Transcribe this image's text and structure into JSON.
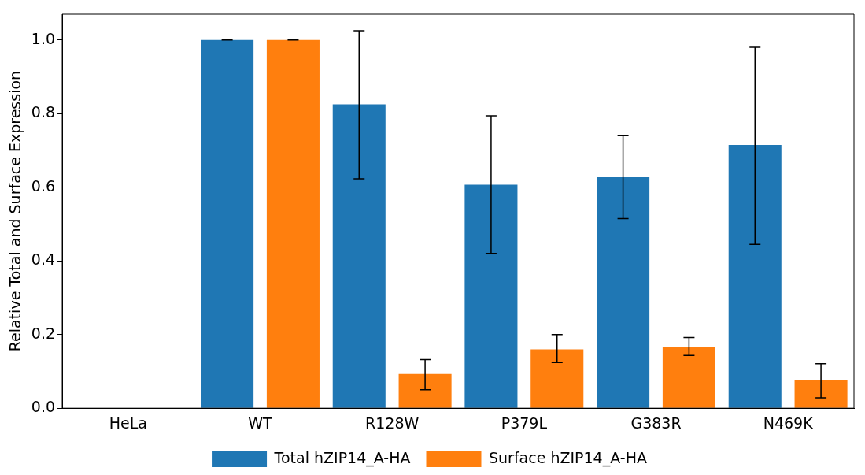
{
  "chart_data": {
    "type": "bar",
    "ylabel": "Relative Total and Surface Expression",
    "categories": [
      "HeLa",
      "WT",
      "R128W",
      "P379L",
      "G383R",
      "N469K"
    ],
    "series": [
      {
        "name": "Total hZIP14_A-HA",
        "color": "#1f77b4",
        "values": [
          0,
          1,
          0.825,
          0.607,
          0.627,
          0.715
        ],
        "errors": [
          null,
          [
            1,
            1
          ],
          [
            0.623,
            1.025
          ],
          [
            0.42,
            0.794
          ],
          [
            0.515,
            0.74
          ],
          [
            0.445,
            0.98
          ]
        ]
      },
      {
        "name": "Surface hZIP14_A-HA",
        "color": "#ff7f0e",
        "values": [
          0,
          1,
          0.093,
          0.16,
          0.167,
          0.076
        ],
        "errors": [
          null,
          [
            1,
            1
          ],
          [
            0.05,
            0.132
          ],
          [
            0.124,
            0.2
          ],
          [
            0.143,
            0.192
          ],
          [
            0.028,
            0.121
          ]
        ]
      }
    ],
    "ylim": [
      0,
      1.07
    ],
    "yticks": [
      {
        "value": 0,
        "label": "0.0"
      },
      {
        "value": 0.2,
        "label": "0.2"
      },
      {
        "value": 0.4,
        "label": "0.4"
      },
      {
        "value": 0.6,
        "label": "0.6"
      },
      {
        "value": 0.8,
        "label": "0.8"
      },
      {
        "value": 1,
        "label": "1.0"
      }
    ],
    "grid": false,
    "legend": "bottom"
  }
}
